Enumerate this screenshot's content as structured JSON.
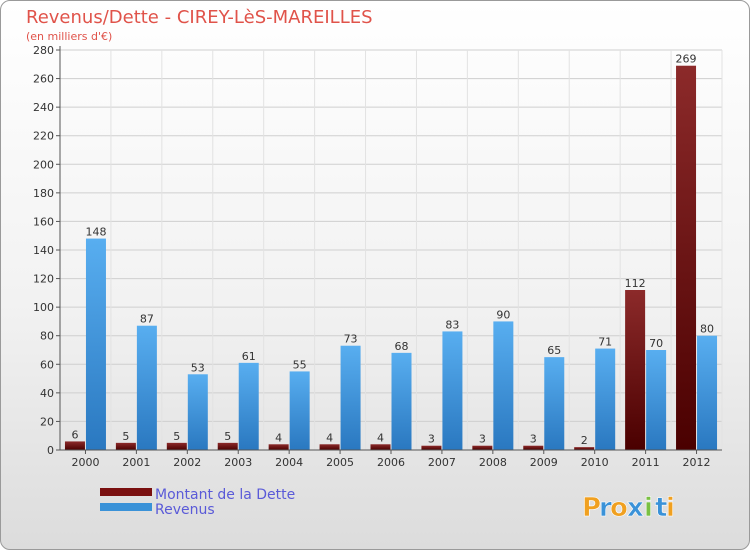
{
  "chart_data": {
    "type": "bar",
    "title": "Revenus/Dette - CIREY-LèS-MAREILLES",
    "subtitle": "(en milliers d'€)",
    "categories": [
      "2000",
      "2001",
      "2002",
      "2003",
      "2004",
      "2005",
      "2006",
      "2007",
      "2008",
      "2009",
      "2010",
      "2011",
      "2012"
    ],
    "series": [
      {
        "name": "Montant de la Dette",
        "color": "#7a1010",
        "values": [
          6,
          5,
          5,
          5,
          4,
          4,
          4,
          3,
          3,
          3,
          2,
          112,
          269
        ]
      },
      {
        "name": "Revenus",
        "color": "#3a92d8",
        "values": [
          148,
          87,
          53,
          61,
          55,
          73,
          68,
          83,
          90,
          65,
          71,
          70,
          80
        ]
      }
    ],
    "ylim": [
      0,
      280
    ],
    "yticks": [
      0,
      20,
      40,
      60,
      80,
      100,
      120,
      140,
      160,
      180,
      200,
      220,
      240,
      260,
      280
    ],
    "grid": true,
    "legend_position": "bottom-left"
  },
  "logo": {
    "text": "Proxiti",
    "letters": [
      "P",
      "r",
      "o",
      "x",
      "i",
      "t",
      "i"
    ],
    "colors": [
      "#f0a020",
      "#3a92d8",
      "#f0a020",
      "#3a92d8",
      "#7ac043",
      "#3a92d8",
      "#f0a020"
    ]
  }
}
